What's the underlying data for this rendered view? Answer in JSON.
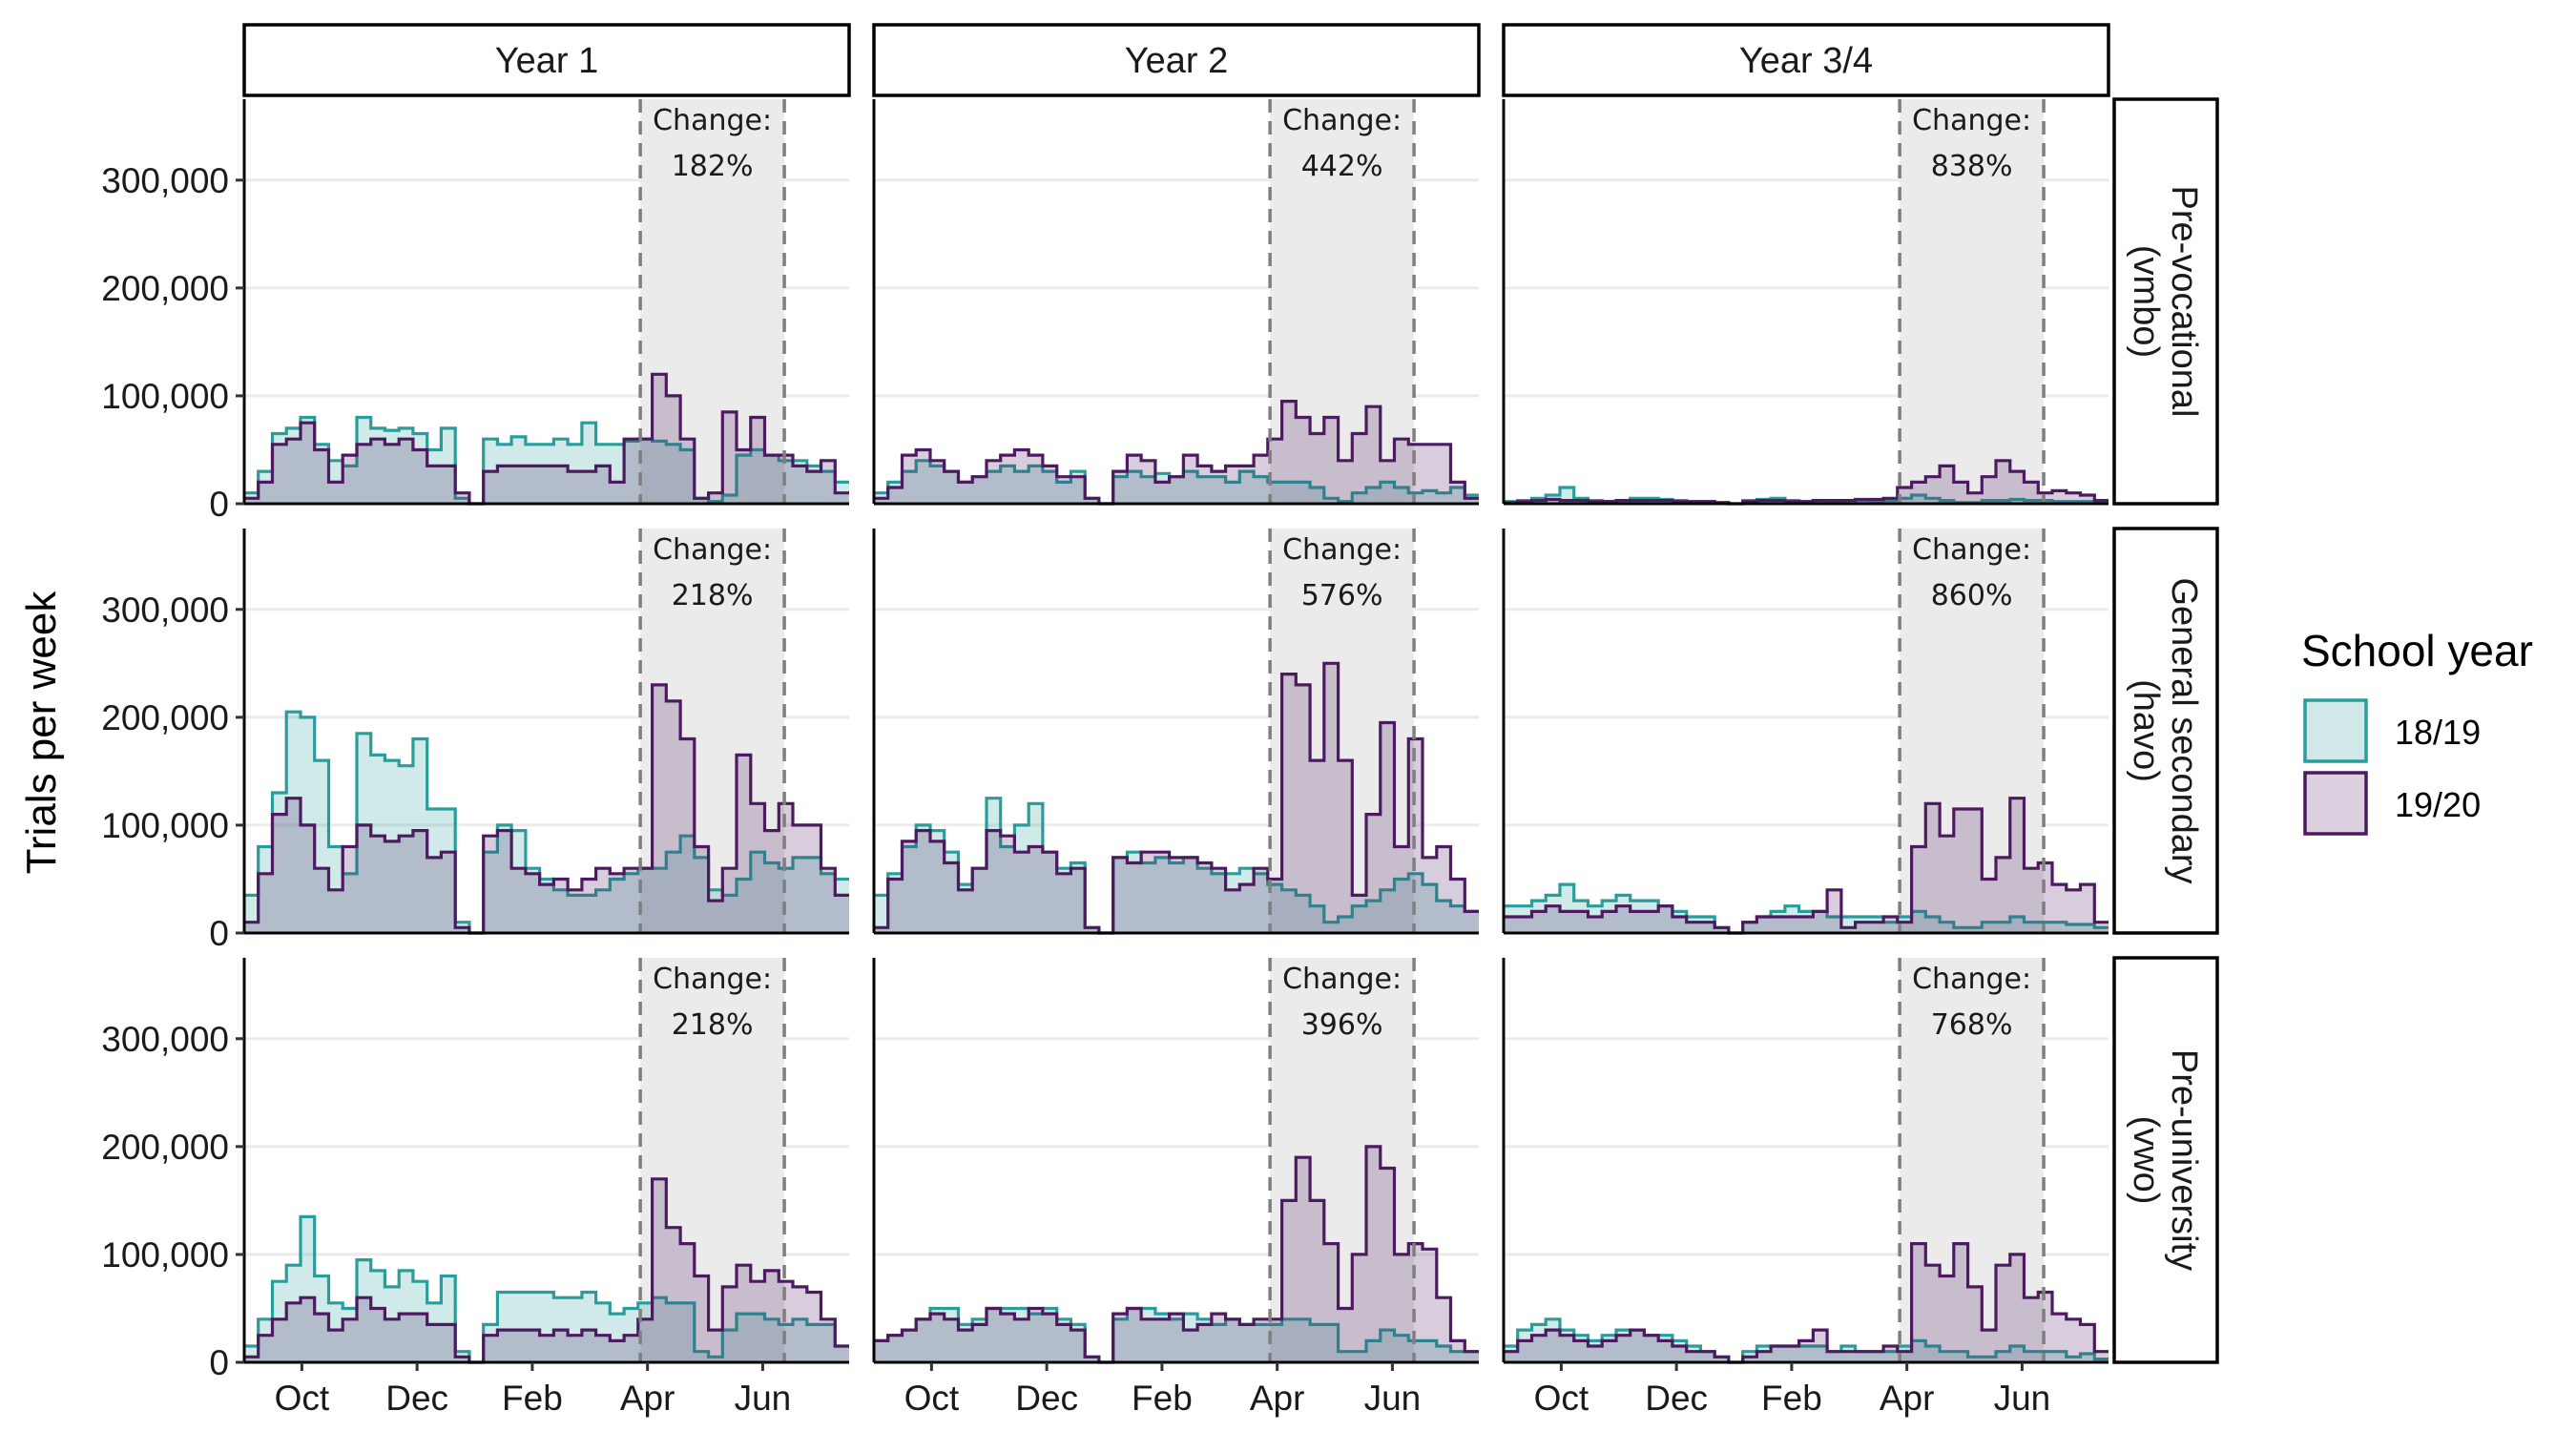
{
  "chart_data": {
    "type": "area",
    "ylabel": "Trials per week",
    "ylim": [
      0,
      375000
    ],
    "yticks": [
      0,
      100000,
      200000,
      300000
    ],
    "ytick_labels": [
      "0",
      "100,000",
      "200,000",
      "300,000"
    ],
    "month_ticks": [
      "Oct",
      "Dec",
      "Feb",
      "Apr",
      "Jun"
    ],
    "x_unit": "week of school year (1 = early September)",
    "x_range": [
      1,
      43
    ],
    "month_tick_weeks": [
      5,
      13,
      21,
      29,
      37
    ],
    "closure_window_weeks": [
      28.5,
      38.5
    ],
    "columns": [
      "Year 1",
      "Year 2",
      "Year 3/4"
    ],
    "rows": [
      "Pre-vocational\n(vmbo)",
      "General secondary\n(havo)",
      "Pre-university\n(vwo)"
    ],
    "legend": {
      "title": "School year",
      "placement": "right",
      "items": [
        {
          "label": "18/19",
          "color": "#2a9d9b",
          "fill": "#d1e8e8"
        },
        {
          "label": "19/20",
          "color": "#4c1a5e",
          "fill": "#dccfe0"
        }
      ]
    },
    "annotation_prefix": "Change:",
    "panels": [
      {
        "row": 0,
        "col": 0,
        "change": "182%",
        "series": {
          "18/19": [
            10000,
            30000,
            65000,
            70000,
            80000,
            55000,
            40000,
            35000,
            80000,
            70000,
            68000,
            70000,
            65000,
            50000,
            70000,
            5000,
            0,
            60000,
            55000,
            62000,
            55000,
            55000,
            60000,
            55000,
            75000,
            55000,
            55000,
            58000,
            60000,
            58000,
            55000,
            50000,
            5000,
            2000,
            8000,
            45000,
            50000,
            45000,
            40000,
            40000,
            35000,
            30000,
            20000
          ],
          "19/20": [
            5000,
            20000,
            55000,
            60000,
            75000,
            50000,
            20000,
            45000,
            55000,
            60000,
            55000,
            60000,
            50000,
            35000,
            35000,
            10000,
            0,
            30000,
            35000,
            35000,
            35000,
            35000,
            35000,
            30000,
            30000,
            35000,
            20000,
            60000,
            60000,
            120000,
            100000,
            60000,
            5000,
            10000,
            85000,
            50000,
            80000,
            45000,
            45000,
            35000,
            30000,
            40000,
            10000
          ]
        }
      },
      {
        "row": 0,
        "col": 1,
        "change": "442%",
        "series": {
          "18/19": [
            10000,
            20000,
            30000,
            40000,
            35000,
            30000,
            20000,
            25000,
            30000,
            35000,
            30000,
            35000,
            30000,
            20000,
            30000,
            5000,
            0,
            25000,
            30000,
            25000,
            28000,
            25000,
            30000,
            25000,
            25000,
            20000,
            30000,
            25000,
            20000,
            20000,
            20000,
            15000,
            5000,
            2000,
            10000,
            15000,
            20000,
            15000,
            10000,
            12000,
            10000,
            15000,
            8000
          ],
          "19/20": [
            5000,
            15000,
            45000,
            50000,
            40000,
            30000,
            20000,
            25000,
            40000,
            45000,
            50000,
            45000,
            35000,
            25000,
            25000,
            5000,
            0,
            30000,
            45000,
            40000,
            20000,
            25000,
            45000,
            35000,
            30000,
            35000,
            35000,
            45000,
            60000,
            95000,
            80000,
            65000,
            80000,
            40000,
            65000,
            90000,
            40000,
            60000,
            55000,
            55000,
            55000,
            20000,
            5000
          ]
        }
      },
      {
        "row": 0,
        "col": 2,
        "change": "838%",
        "series": {
          "18/19": [
            2000,
            3000,
            5000,
            8000,
            15000,
            5000,
            3000,
            2000,
            3000,
            5000,
            5000,
            4000,
            3000,
            2000,
            2000,
            1000,
            0,
            3000,
            4000,
            5000,
            3000,
            2000,
            3000,
            2000,
            3000,
            3000,
            2000,
            3000,
            5000,
            8000,
            5000,
            3000,
            1000,
            1000,
            3000,
            3000,
            4000,
            3000,
            3000,
            2000,
            2000,
            2000,
            1000
          ],
          "19/20": [
            1000,
            2000,
            3000,
            4000,
            3000,
            3000,
            2000,
            2000,
            3000,
            3000,
            3000,
            3000,
            2000,
            2000,
            2000,
            1000,
            0,
            2000,
            3000,
            3000,
            2000,
            2000,
            3000,
            3000,
            3000,
            4000,
            4000,
            5000,
            15000,
            20000,
            25000,
            35000,
            20000,
            10000,
            25000,
            40000,
            30000,
            20000,
            10000,
            12000,
            10000,
            8000,
            3000
          ]
        }
      },
      {
        "row": 1,
        "col": 0,
        "change": "218%",
        "series": {
          "18/19": [
            35000,
            80000,
            130000,
            205000,
            200000,
            160000,
            80000,
            55000,
            185000,
            165000,
            160000,
            155000,
            180000,
            115000,
            115000,
            10000,
            0,
            75000,
            100000,
            95000,
            60000,
            50000,
            40000,
            35000,
            35000,
            40000,
            50000,
            55000,
            60000,
            60000,
            75000,
            90000,
            70000,
            40000,
            35000,
            50000,
            75000,
            65000,
            60000,
            70000,
            70000,
            55000,
            50000
          ],
          "19/20": [
            10000,
            55000,
            110000,
            125000,
            100000,
            60000,
            40000,
            80000,
            100000,
            90000,
            85000,
            90000,
            95000,
            70000,
            75000,
            5000,
            0,
            90000,
            95000,
            60000,
            55000,
            45000,
            50000,
            40000,
            50000,
            60000,
            55000,
            60000,
            60000,
            230000,
            215000,
            180000,
            80000,
            30000,
            60000,
            165000,
            120000,
            95000,
            120000,
            100000,
            100000,
            60000,
            35000
          ]
        }
      },
      {
        "row": 1,
        "col": 1,
        "change": "576%",
        "series": {
          "18/19": [
            35000,
            55000,
            80000,
            100000,
            95000,
            75000,
            45000,
            60000,
            125000,
            80000,
            100000,
            120000,
            75000,
            60000,
            65000,
            5000,
            0,
            70000,
            75000,
            65000,
            70000,
            65000,
            70000,
            60000,
            55000,
            55000,
            60000,
            55000,
            45000,
            40000,
            35000,
            25000,
            10000,
            15000,
            25000,
            30000,
            40000,
            50000,
            55000,
            45000,
            30000,
            25000,
            20000
          ],
          "19/20": [
            5000,
            50000,
            85000,
            95000,
            85000,
            65000,
            40000,
            60000,
            95000,
            90000,
            75000,
            80000,
            75000,
            55000,
            60000,
            5000,
            0,
            70000,
            65000,
            75000,
            75000,
            70000,
            70000,
            65000,
            60000,
            40000,
            45000,
            60000,
            50000,
            240000,
            230000,
            160000,
            250000,
            160000,
            35000,
            110000,
            195000,
            80000,
            180000,
            70000,
            80000,
            50000,
            20000
          ]
        }
      },
      {
        "row": 1,
        "col": 2,
        "change": "860%",
        "series": {
          "18/19": [
            25000,
            25000,
            30000,
            35000,
            45000,
            30000,
            25000,
            30000,
            35000,
            30000,
            30000,
            25000,
            20000,
            15000,
            15000,
            5000,
            0,
            10000,
            15000,
            20000,
            25000,
            20000,
            20000,
            15000,
            15000,
            15000,
            15000,
            10000,
            15000,
            20000,
            15000,
            10000,
            5000,
            5000,
            10000,
            10000,
            15000,
            10000,
            10000,
            10000,
            8000,
            8000,
            5000
          ],
          "19/20": [
            15000,
            15000,
            20000,
            25000,
            20000,
            20000,
            15000,
            20000,
            25000,
            20000,
            20000,
            25000,
            15000,
            10000,
            10000,
            5000,
            0,
            10000,
            15000,
            15000,
            15000,
            15000,
            20000,
            40000,
            5000,
            10000,
            10000,
            15000,
            10000,
            80000,
            120000,
            90000,
            115000,
            115000,
            50000,
            70000,
            125000,
            60000,
            65000,
            45000,
            40000,
            45000,
            10000
          ]
        }
      },
      {
        "row": 2,
        "col": 0,
        "change": "218%",
        "series": {
          "18/19": [
            15000,
            40000,
            75000,
            90000,
            135000,
            80000,
            55000,
            50000,
            95000,
            85000,
            70000,
            85000,
            75000,
            55000,
            80000,
            10000,
            0,
            35000,
            65000,
            65000,
            65000,
            65000,
            60000,
            60000,
            65000,
            55000,
            45000,
            50000,
            55000,
            60000,
            55000,
            55000,
            10000,
            5000,
            30000,
            45000,
            45000,
            40000,
            35000,
            40000,
            35000,
            35000,
            15000
          ],
          "19/20": [
            5000,
            25000,
            40000,
            55000,
            60000,
            45000,
            30000,
            40000,
            60000,
            50000,
            40000,
            45000,
            45000,
            35000,
            35000,
            5000,
            0,
            25000,
            30000,
            30000,
            30000,
            25000,
            30000,
            25000,
            30000,
            25000,
            20000,
            25000,
            40000,
            170000,
            125000,
            110000,
            80000,
            30000,
            70000,
            90000,
            75000,
            85000,
            75000,
            70000,
            65000,
            40000,
            15000
          ]
        }
      },
      {
        "row": 2,
        "col": 1,
        "change": "396%",
        "series": {
          "18/19": [
            20000,
            25000,
            30000,
            40000,
            50000,
            50000,
            35000,
            40000,
            50000,
            50000,
            50000,
            45000,
            50000,
            40000,
            35000,
            5000,
            0,
            40000,
            50000,
            50000,
            45000,
            40000,
            45000,
            40000,
            35000,
            40000,
            35000,
            35000,
            35000,
            40000,
            40000,
            35000,
            35000,
            10000,
            10000,
            20000,
            30000,
            25000,
            20000,
            20000,
            15000,
            10000,
            10000
          ],
          "19/20": [
            20000,
            25000,
            30000,
            40000,
            45000,
            40000,
            30000,
            35000,
            50000,
            45000,
            40000,
            50000,
            45000,
            35000,
            30000,
            5000,
            0,
            45000,
            50000,
            40000,
            40000,
            45000,
            30000,
            35000,
            45000,
            40000,
            35000,
            40000,
            40000,
            150000,
            190000,
            150000,
            110000,
            50000,
            100000,
            200000,
            180000,
            100000,
            110000,
            105000,
            60000,
            20000,
            10000
          ]
        }
      },
      {
        "row": 2,
        "col": 2,
        "change": "768%",
        "series": {
          "18/19": [
            15000,
            30000,
            35000,
            40000,
            30000,
            25000,
            20000,
            25000,
            30000,
            30000,
            25000,
            25000,
            20000,
            15000,
            10000,
            5000,
            0,
            10000,
            15000,
            15000,
            15000,
            15000,
            15000,
            10000,
            15000,
            10000,
            10000,
            10000,
            15000,
            20000,
            15000,
            10000,
            10000,
            5000,
            5000,
            10000,
            15000,
            10000,
            10000,
            10000,
            5000,
            8000,
            3000
          ],
          "19/20": [
            10000,
            20000,
            25000,
            30000,
            25000,
            20000,
            15000,
            20000,
            25000,
            30000,
            25000,
            20000,
            15000,
            10000,
            10000,
            5000,
            0,
            5000,
            10000,
            15000,
            15000,
            20000,
            30000,
            10000,
            10000,
            10000,
            10000,
            15000,
            10000,
            110000,
            90000,
            80000,
            110000,
            70000,
            30000,
            90000,
            100000,
            60000,
            65000,
            45000,
            40000,
            35000,
            10000
          ]
        }
      }
    ]
  }
}
